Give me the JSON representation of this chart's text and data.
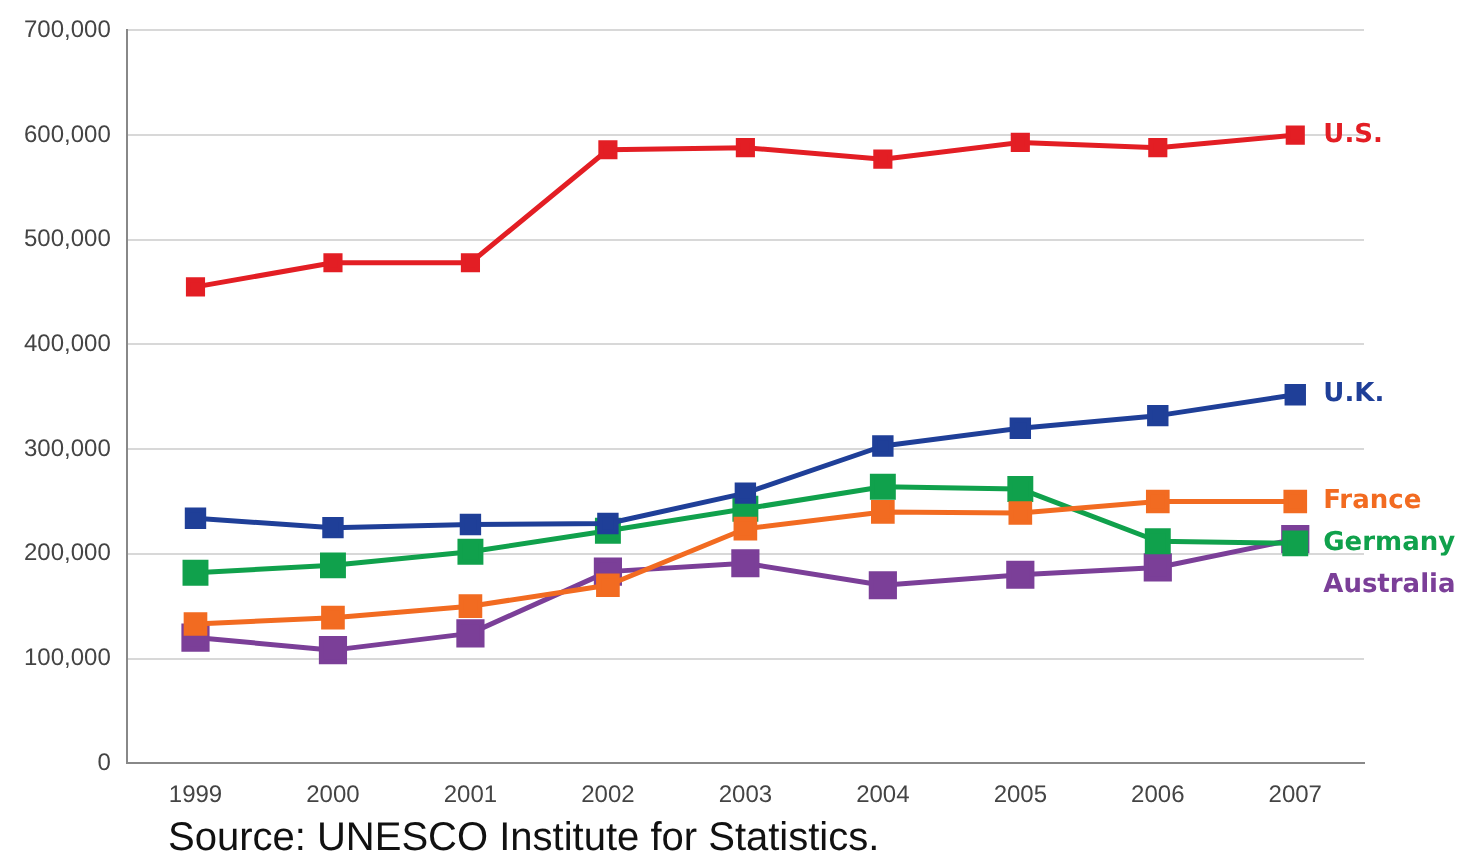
{
  "chart_data": {
    "type": "line",
    "categories": [
      "1999",
      "2000",
      "2001",
      "2002",
      "2003",
      "2004",
      "2005",
      "2006",
      "2007"
    ],
    "series": [
      {
        "name": "U.S.",
        "color": "#e31e24",
        "values": [
          455000,
          478000,
          478000,
          586000,
          588000,
          577000,
          593000,
          588000,
          600000
        ]
      },
      {
        "name": "U.K.",
        "color": "#1f3f98",
        "values": [
          234000,
          225000,
          228000,
          229000,
          258000,
          303000,
          320000,
          332000,
          352000
        ]
      },
      {
        "name": "France",
        "color": "#f26b21",
        "values": [
          133000,
          139000,
          150000,
          170000,
          224000,
          240000,
          239000,
          250000,
          250000
        ]
      },
      {
        "name": "Germany",
        "color": "#10a14c",
        "values": [
          182000,
          189000,
          202000,
          222000,
          243000,
          264000,
          262000,
          212000,
          210000
        ]
      },
      {
        "name": "Australia",
        "color": "#7b3f98",
        "values": [
          120000,
          108000,
          124000,
          183000,
          191000,
          170000,
          180000,
          187000,
          214000
        ]
      }
    ],
    "ylim": [
      0,
      700000
    ],
    "yticks": [
      0,
      {
        "value": 100000,
        "label": "100,000"
      },
      {
        "value": 200000,
        "label": "200,000"
      },
      {
        "value": 300000,
        "label": "300,000"
      },
      {
        "value": 400000,
        "label": "400,000"
      },
      {
        "value": 500000,
        "label": "500,000"
      },
      {
        "value": 600000,
        "label": "600,000"
      },
      {
        "value": 700000,
        "label": "700,000"
      }
    ],
    "grid": "y",
    "legend": false,
    "marker": "square",
    "line_style": "solid",
    "annotations": [
      "Source: UNESCO Institute for Statistics."
    ]
  }
}
